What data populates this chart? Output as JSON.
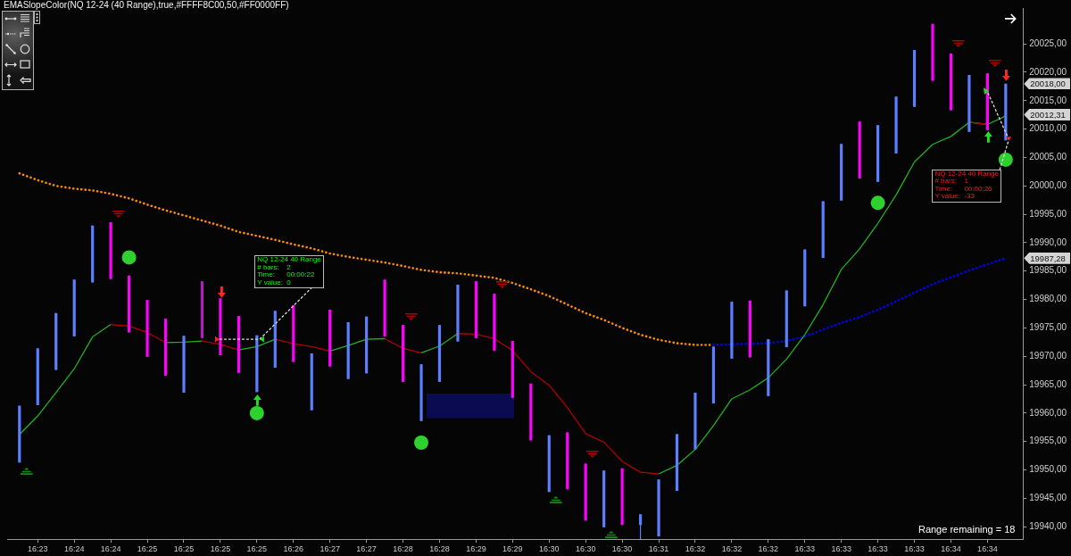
{
  "chart_data": {
    "type": "candlestick",
    "title": "EMASlopeColor(NQ 12-24 (40 Range),true,#FFFF8C00,50,#FF0000FF)",
    "categories": [
      null,
      "16:23",
      null,
      "16:24",
      null,
      "16:24",
      null,
      "16:25",
      null,
      "16:25",
      null,
      "16:25",
      null,
      "16:25",
      null,
      "16:26",
      null,
      "16:27",
      null,
      "16:27",
      null,
      "16:28",
      null,
      "16:28",
      null,
      "16:29",
      null,
      "16:29",
      null,
      "16:30",
      null,
      "16:30",
      null,
      "16:30",
      null,
      "16:31",
      null,
      "16:32",
      null,
      "16:32",
      null,
      "16:32",
      null,
      "16:33",
      null,
      "16:33",
      null,
      "16:33",
      null,
      "16:33",
      null,
      "16:34",
      null,
      "16:34",
      null
    ],
    "ohlc": [
      [
        19951.3,
        19961.3,
        19951.3,
        19961.3
      ],
      [
        19961.4,
        19971.4,
        19961.4,
        19971.4
      ],
      [
        19967.6,
        19977.6,
        19967.6,
        19977.6
      ],
      [
        19973.5,
        19983.5,
        19973.5,
        19983.5
      ],
      [
        19983,
        19993,
        19983,
        19993
      ],
      [
        19993.6,
        19993.6,
        19983.6,
        19983.6
      ],
      [
        19984.2,
        19984.2,
        19974.2,
        19974.2
      ],
      [
        19979.9,
        19979.9,
        19969.9,
        19969.9
      ],
      [
        19976.6,
        19976.6,
        19966.6,
        19966.6
      ],
      [
        19963.6,
        19973.6,
        19963.6,
        19973.6
      ],
      [
        19973.2,
        19983.2,
        19973.2,
        19983.2
      ],
      [
        19980.2,
        19980.2,
        19970.2,
        19970.2
      ],
      [
        19977.1,
        19977.1,
        19967.1,
        19967.1
      ],
      [
        19963.7,
        19973.7,
        19963.7,
        19973.7
      ],
      [
        19968,
        19978,
        19968,
        19978
      ],
      [
        19979,
        19979,
        19969,
        19969
      ],
      [
        19960.5,
        19970.5,
        19960.5,
        19970.5
      ],
      [
        19978.2,
        19978.2,
        19968.2,
        19968.2
      ],
      [
        19966,
        19976,
        19966,
        19976
      ],
      [
        19967,
        19977,
        19967,
        19977
      ],
      [
        19983.5,
        19983.5,
        19973.5,
        19973.5
      ],
      [
        19975.5,
        19975.5,
        19965.5,
        19965.5
      ],
      [
        19958.6,
        19968.6,
        19958.6,
        19968.6
      ],
      [
        19965.5,
        19975.5,
        19965.5,
        19975.5
      ],
      [
        19972.6,
        19982.6,
        19972.6,
        19982.6
      ],
      [
        19983.2,
        19983.2,
        19973.2,
        19973.2
      ],
      [
        19981,
        19981,
        19971,
        19971
      ],
      [
        19972.7,
        19972.7,
        19962.7,
        19962.7
      ],
      [
        19965.2,
        19965.2,
        19955.2,
        19955.2
      ],
      [
        19946.1,
        19956.1,
        19946.1,
        19956.1
      ],
      [
        19956.6,
        19956.6,
        19946.6,
        19946.6
      ],
      [
        19951.1,
        19951.1,
        19941.1,
        19941.1
      ],
      [
        19939.9,
        19949.9,
        19939.9,
        19949.9
      ],
      [
        19950.3,
        19950.3,
        19940.3,
        19940.3
      ],
      [
        19940.3,
        19942.2,
        19937.8,
        19942.2
      ],
      [
        19938.3,
        19948.3,
        19938.3,
        19948.3
      ],
      [
        19946.3,
        19956.3,
        19946.3,
        19956.3
      ],
      [
        19953.6,
        19963.6,
        19953.6,
        19963.6
      ],
      [
        19961.7,
        19971.7,
        19961.7,
        19971.7
      ],
      [
        19969.6,
        19979.6,
        19969.6,
        19979.6
      ],
      [
        19979.8,
        19979.8,
        19969.8,
        19969.8
      ],
      [
        19963,
        19973,
        19963,
        19973
      ],
      [
        19971.6,
        19981.6,
        19971.6,
        19981.6
      ],
      [
        19978.8,
        19988.8,
        19978.8,
        19988.8
      ],
      [
        19987.3,
        19997.3,
        19987.3,
        19997.3
      ],
      [
        19997.4,
        20007.4,
        19997.4,
        20007.4
      ],
      [
        20011.3,
        20011.3,
        20001.3,
        20001.3
      ],
      [
        20000.7,
        20010.7,
        20000.7,
        20010.7
      ],
      [
        20005.7,
        20015.7,
        20005.7,
        20015.7
      ],
      [
        20013.9,
        20023.9,
        20013.9,
        20023.9
      ],
      [
        20028.5,
        20028.5,
        20018.5,
        20018.5
      ],
      [
        20023.3,
        20023.3,
        20013.3,
        20013.3
      ],
      [
        20009.5,
        20019.5,
        20009.5,
        20019.5
      ],
      [
        20019.8,
        20019.8,
        20009.8,
        20009.8
      ],
      [
        20008,
        20018,
        20008,
        20018
      ]
    ],
    "colors": [
      "#5b7fff",
      "#5b7fff",
      "#5b7fff",
      "#5b7fff",
      "#5b7fff",
      "#ff00ff",
      "#ff00ff",
      "#ff00ff",
      "#ff00ff",
      "#5b7fff",
      "#b020c0",
      "#ff00ff",
      "#ff00ff",
      "#5b7fff",
      "#5b7fff",
      "#ff00ff",
      "#5b7fff",
      "#ff00ff",
      "#5b7fff",
      "#5b7fff",
      "#ff00ff",
      "#ff00ff",
      "#5b7fff",
      "#5b7fff",
      "#5b7fff",
      "#ff00ff",
      "#ff00ff",
      "#ff00ff",
      "#ff00ff",
      "#5b7fff",
      "#ff00ff",
      "#ff00ff",
      "#5b7fff",
      "#ff00ff",
      "#5b7fff",
      "#5b7fff",
      "#5b7fff",
      "#5b7fff",
      "#5b7fff",
      "#5b7fff",
      "#ff00ff",
      "#5b7fff",
      "#5b7fff",
      "#5b7fff",
      "#5b7fff",
      "#5b7fff",
      "#ff00ff",
      "#5b7fff",
      "#5b7fff",
      "#5b7fff",
      "#ff00ff",
      "#ff00ff",
      "#5b7fff",
      "#ff00ff",
      "#5b7fff"
    ],
    "series": [
      {
        "type": "line",
        "line_style": "dotted",
        "color": "#ff8c00",
        "values": [
          20002.2,
          20001.0,
          20000.0,
          19999.5,
          19999.2,
          19998.6,
          19997.8,
          19996.7,
          19995.7,
          19994.8,
          19993.9,
          19993.0,
          19991.9,
          19991.2,
          19990.5,
          19989.7,
          19989.0,
          19988.1,
          19987.5,
          19987.0,
          19986.5,
          19985.9,
          19985.2,
          19984.8,
          19984.6,
          19984.2,
          19983.8,
          19982.9,
          19981.8,
          19980.6,
          19979.1,
          19977.6,
          19976.4,
          19975.0,
          19973.8,
          19972.9,
          19972.3,
          19972.0,
          19972.0,
          null,
          null,
          null,
          null,
          null,
          null,
          null,
          null,
          null,
          null,
          null,
          null,
          null,
          null,
          null,
          null
        ]
      },
      {
        "type": "line",
        "line_style": "dotted",
        "color": "#0000ff",
        "values": [
          null,
          null,
          null,
          null,
          null,
          null,
          null,
          null,
          null,
          null,
          null,
          null,
          null,
          null,
          null,
          null,
          null,
          null,
          null,
          null,
          null,
          null,
          null,
          null,
          null,
          null,
          null,
          null,
          null,
          null,
          null,
          null,
          null,
          null,
          null,
          null,
          null,
          null,
          19972.0,
          19972.1,
          19972.2,
          19972.3,
          19972.7,
          19973.5,
          19974.7,
          19975.9,
          19976.9,
          19978.2,
          19979.7,
          19981.2,
          19982.7,
          19983.9,
          19985.1,
          19986.2,
          19987.3
        ]
      },
      {
        "type": "line",
        "line_style": "solid",
        "color": "#22b022",
        "values": [
          19956.2,
          19959.5,
          19963.6,
          19967.8,
          19973.4,
          19975.6,
          null,
          null,
          19972.4,
          19972.5,
          19972.7,
          null,
          19971.1,
          19971.7,
          19973.0,
          null,
          null,
          19970.9,
          19971.9,
          19973.0,
          19973.1,
          null,
          19970.6,
          19971.8,
          19974.0,
          null,
          null,
          null,
          null,
          null,
          null,
          null,
          null,
          null,
          null,
          19949.3,
          19950.8,
          19953.6,
          19957.8,
          19962.5,
          19964.1,
          19966.2,
          19969.5,
          19973.8,
          19979.1,
          19985.3,
          19988.9,
          19993.4,
          19998.4,
          20004.2,
          20007.3,
          20008.7,
          20011.2,
          20010.8,
          20012.3
        ]
      },
      {
        "type": "line",
        "line_style": "solid",
        "color": "#b00000",
        "values": [
          null,
          null,
          null,
          null,
          null,
          19975.6,
          19975.3,
          19974.2,
          19972.4,
          null,
          19972.7,
          19972.1,
          19971.1,
          null,
          19973.0,
          19972.2,
          19971.7,
          19970.9,
          null,
          null,
          19973.1,
          19971.4,
          19970.6,
          null,
          19974.0,
          19973.9,
          19973.1,
          19971.0,
          19967.3,
          19964.9,
          19961.0,
          19956.4,
          19954.9,
          19951.5,
          19949.6,
          19949.3,
          null,
          null,
          null,
          null,
          null,
          null,
          null,
          null,
          null,
          null,
          null,
          null,
          null,
          null,
          null,
          null,
          20011.2,
          20010.8,
          null
        ]
      },
      {
        "type": "scatter",
        "marker": "circle",
        "color": "#2fd12f",
        "values": [
          null,
          null,
          null,
          null,
          null,
          null,
          19987.4,
          null,
          null,
          null,
          null,
          null,
          null,
          19960.0,
          null,
          null,
          null,
          null,
          null,
          null,
          null,
          null,
          19954.8,
          null,
          null,
          null,
          null,
          null,
          null,
          null,
          null,
          null,
          null,
          null,
          null,
          null,
          null,
          null,
          null,
          null,
          null,
          null,
          null,
          null,
          null,
          null,
          null,
          19997.0,
          null,
          null,
          null,
          null,
          null,
          null,
          20004.6
        ]
      }
    ],
    "ylim": [
      19937.8,
      20031.3
    ],
    "yticks": [
      {
        "value": 19940,
        "label": "19940,00"
      },
      {
        "value": 19945,
        "label": "19945,00"
      },
      {
        "value": 19950,
        "label": "19950,00"
      },
      {
        "value": 19955,
        "label": "19955,00"
      },
      {
        "value": 19960,
        "label": "19960,00"
      },
      {
        "value": 19965,
        "label": "19965,00"
      },
      {
        "value": 19970,
        "label": "19970,00"
      },
      {
        "value": 19975,
        "label": "19975,00"
      },
      {
        "value": 19980,
        "label": "19980,00"
      },
      {
        "value": 19985,
        "label": "19985,00"
      },
      {
        "value": 19990,
        "label": "19990,00"
      },
      {
        "value": 19995,
        "label": "19995,00"
      },
      {
        "value": 20000,
        "label": "20000,00"
      },
      {
        "value": 20005,
        "label": "20005,00"
      },
      {
        "value": 20010,
        "label": "20010,00"
      },
      {
        "value": 20015,
        "label": "20015,00"
      },
      {
        "value": 20020,
        "label": "20020,00"
      },
      {
        "value": 20025,
        "label": "20025,00"
      }
    ],
    "annotations": [
      "NQ 12-24 40 Range\n# bars:\t2\nTime:\t00:00:22\nY value:\t0",
      "NQ 12-24 40 Range\n# bars:\t1\nTime:\t00:00:26\nY value:\t-33",
      "Range remaining = 18",
      "20018,00",
      "20012,31",
      "19987,28"
    ]
  }
}
